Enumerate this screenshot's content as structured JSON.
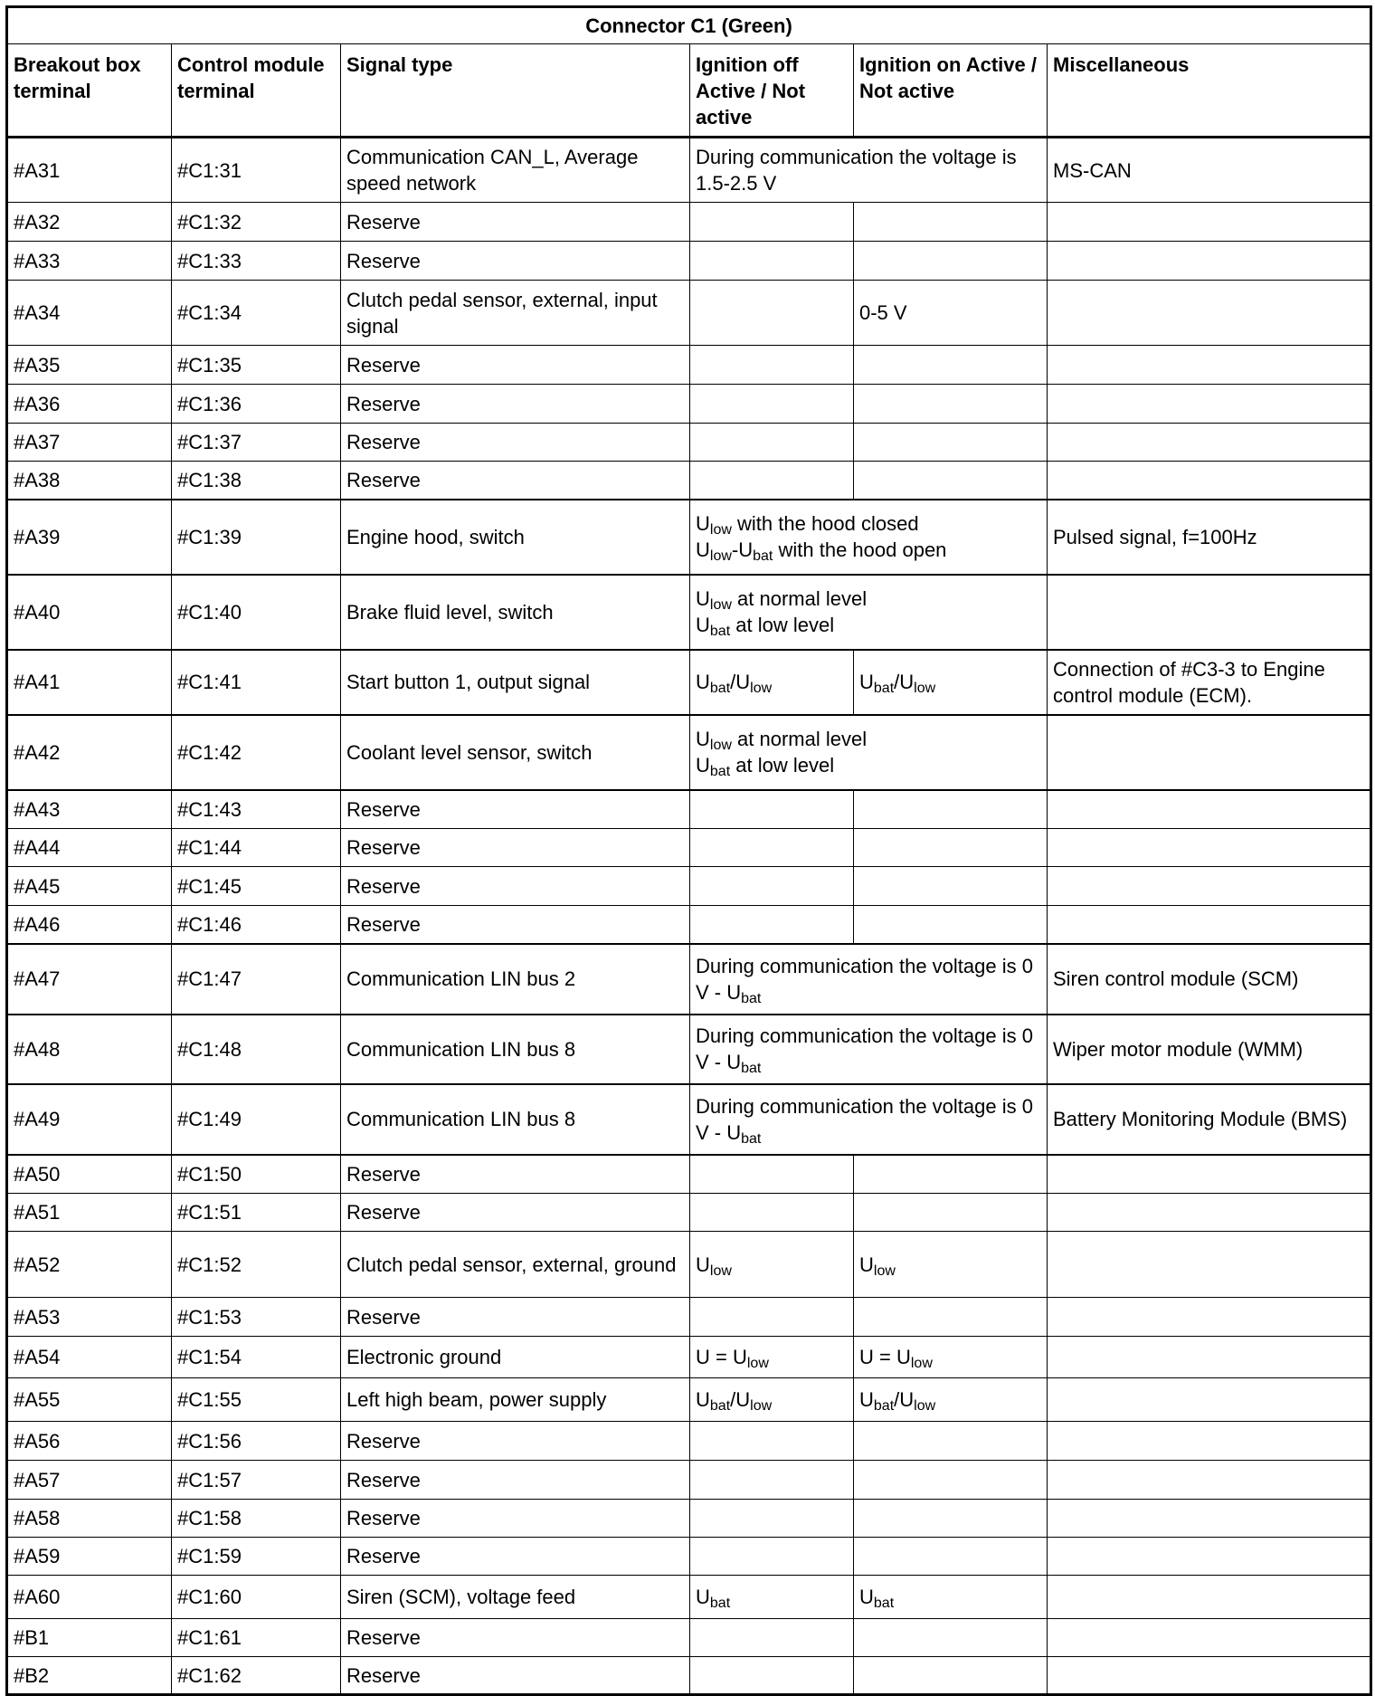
{
  "title": "Connector C1 (Green)",
  "headers": [
    "Breakout box terminal",
    "Control module terminal",
    "Signal type",
    "Ignition off Active / Not active",
    "Ignition on Active / Not active",
    "Miscellaneous"
  ],
  "rows": [
    {
      "breakout": "#A31",
      "control": "#C1:31",
      "signal": "Communication CAN_L, Average speed network",
      "ign_merged": [
        [
          {
            "t": "During communication the voltage is 1.5-2.5 V"
          }
        ]
      ],
      "misc": "MS-CAN"
    },
    {
      "breakout": "#A32",
      "control": "#C1:32",
      "signal": "Reserve"
    },
    {
      "breakout": "#A33",
      "control": "#C1:33",
      "signal": "Reserve"
    },
    {
      "breakout": "#A34",
      "control": "#C1:34",
      "signal": "Clutch pedal sensor, external, input signal",
      "ign_on": [
        [
          {
            "t": "0-5 V"
          }
        ]
      ]
    },
    {
      "breakout": "#A35",
      "control": "#C1:35",
      "signal": "Reserve"
    },
    {
      "breakout": "#A36",
      "control": "#C1:36",
      "signal": "Reserve"
    },
    {
      "breakout": "#A37",
      "control": "#C1:37",
      "signal": "Reserve"
    },
    {
      "breakout": "#A38",
      "control": "#C1:38",
      "signal": "Reserve"
    },
    {
      "breakout": "#A39",
      "control": "#C1:39",
      "signal": "Engine hood, switch",
      "ign_merged": [
        [
          {
            "t": "U"
          },
          {
            "sub": "low"
          },
          {
            "t": " with the hood closed"
          }
        ],
        [
          {
            "t": "U"
          },
          {
            "sub": "low"
          },
          {
            "t": "-U"
          },
          {
            "sub": "bat"
          },
          {
            "t": " with the hood open"
          }
        ]
      ],
      "misc": "Pulsed signal, f=100Hz"
    },
    {
      "breakout": "#A40",
      "control": "#C1:40",
      "signal": "Brake fluid level, switch",
      "ign_merged": [
        [
          {
            "t": "U"
          },
          {
            "sub": "low"
          },
          {
            "t": " at normal level"
          }
        ],
        [
          {
            "t": "U"
          },
          {
            "sub": "bat"
          },
          {
            "t": " at low level"
          }
        ]
      ]
    },
    {
      "breakout": "#A41",
      "control": "#C1:41",
      "signal": "Start button 1, output signal",
      "ign_off": [
        [
          {
            "t": "U"
          },
          {
            "sub": "bat"
          },
          {
            "t": "/U"
          },
          {
            "sub": "low"
          }
        ]
      ],
      "ign_on": [
        [
          {
            "t": "U"
          },
          {
            "sub": "bat"
          },
          {
            "t": "/U"
          },
          {
            "sub": "low"
          }
        ]
      ],
      "misc": "Connection of #C3-3 to Engine control module (ECM)."
    },
    {
      "breakout": "#A42",
      "control": "#C1:42",
      "signal": "Coolant level sensor, switch",
      "ign_merged": [
        [
          {
            "t": "U"
          },
          {
            "sub": "low"
          },
          {
            "t": " at normal level"
          }
        ],
        [
          {
            "t": "U"
          },
          {
            "sub": "bat"
          },
          {
            "t": " at low level"
          }
        ]
      ]
    },
    {
      "breakout": "#A43",
      "control": "#C1:43",
      "signal": "Reserve"
    },
    {
      "breakout": "#A44",
      "control": "#C1:44",
      "signal": "Reserve"
    },
    {
      "breakout": "#A45",
      "control": "#C1:45",
      "signal": "Reserve"
    },
    {
      "breakout": "#A46",
      "control": "#C1:46",
      "signal": "Reserve"
    },
    {
      "breakout": "#A47",
      "control": "#C1:47",
      "signal": "Communication LIN bus 2",
      "ign_merged": [
        [
          {
            "t": "During communication the voltage is 0 V - U"
          },
          {
            "sub": "bat"
          }
        ]
      ],
      "misc": "Siren control module (SCM)"
    },
    {
      "breakout": "#A48",
      "control": "#C1:48",
      "signal": "Communication LIN bus 8",
      "ign_merged": [
        [
          {
            "t": "During communication the voltage is 0 V - U"
          },
          {
            "sub": "bat"
          }
        ]
      ],
      "misc": "Wiper motor module (WMM)"
    },
    {
      "breakout": "#A49",
      "control": "#C1:49",
      "signal": "Communication LIN bus 8",
      "ign_merged": [
        [
          {
            "t": "During communication the voltage is 0 V - U"
          },
          {
            "sub": "bat"
          }
        ]
      ],
      "misc": "Battery Monitoring Module (BMS)"
    },
    {
      "breakout": "#A50",
      "control": "#C1:50",
      "signal": "Reserve"
    },
    {
      "breakout": "#A51",
      "control": "#C1:51",
      "signal": "Reserve"
    },
    {
      "breakout": "#A52",
      "control": "#C1:52",
      "signal": "Clutch pedal sensor, external, ground",
      "ign_off": [
        [
          {
            "t": "U"
          },
          {
            "sub": "low"
          }
        ]
      ],
      "ign_on": [
        [
          {
            "t": "U"
          },
          {
            "sub": "low"
          }
        ]
      ]
    },
    {
      "breakout": "#A53",
      "control": "#C1:53",
      "signal": "Reserve"
    },
    {
      "breakout": "#A54",
      "control": "#C1:54",
      "signal": "Electronic ground",
      "ign_off": [
        [
          {
            "t": "U = U"
          },
          {
            "sub": "low"
          }
        ]
      ],
      "ign_on": [
        [
          {
            "t": "U = U"
          },
          {
            "sub": "low"
          }
        ]
      ]
    },
    {
      "breakout": "#A55",
      "control": "#C1:55",
      "signal": "Left high beam, power supply",
      "ign_off": [
        [
          {
            "t": "U"
          },
          {
            "sub": "bat"
          },
          {
            "t": "/U"
          },
          {
            "sub": "low"
          }
        ]
      ],
      "ign_on": [
        [
          {
            "t": "U"
          },
          {
            "sub": "bat"
          },
          {
            "t": "/U"
          },
          {
            "sub": "low"
          }
        ]
      ]
    },
    {
      "breakout": "#A56",
      "control": "#C1:56",
      "signal": "Reserve"
    },
    {
      "breakout": "#A57",
      "control": "#C1:57",
      "signal": "Reserve"
    },
    {
      "breakout": "#A58",
      "control": "#C1:58",
      "signal": "Reserve"
    },
    {
      "breakout": "#A59",
      "control": "#C1:59",
      "signal": "Reserve"
    },
    {
      "breakout": "#A60",
      "control": "#C1:60",
      "signal": "Siren (SCM), voltage feed",
      "ign_off": [
        [
          {
            "t": "U"
          },
          {
            "sub": "bat"
          }
        ]
      ],
      "ign_on": [
        [
          {
            "t": "U"
          },
          {
            "sub": "bat"
          }
        ]
      ]
    },
    {
      "breakout": "#B1",
      "control": "#C1:61",
      "signal": "Reserve"
    },
    {
      "breakout": "#B2",
      "control": "#C1:62",
      "signal": "Reserve"
    }
  ]
}
